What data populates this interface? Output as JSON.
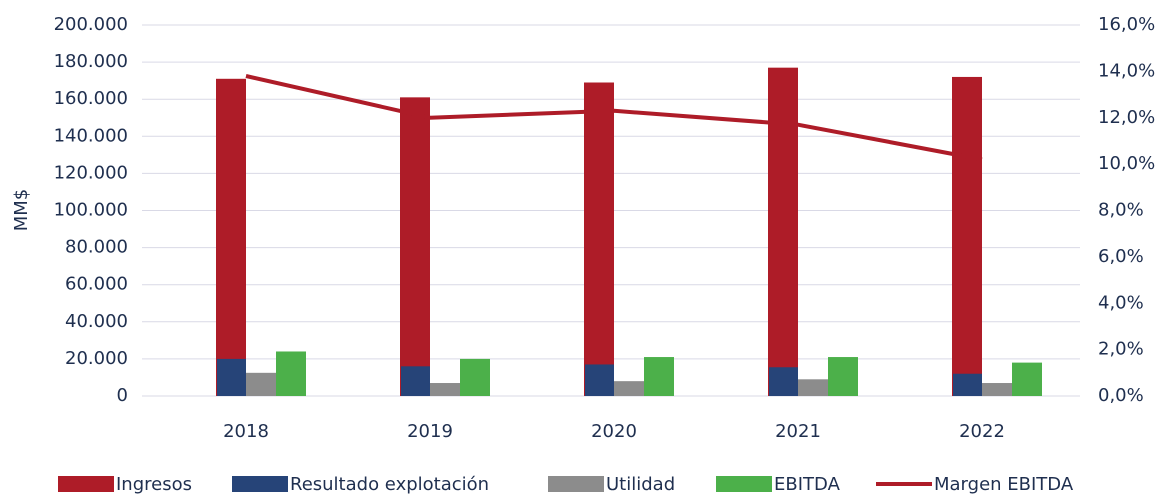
{
  "chart_data": {
    "type": "bar",
    "y_label": "MM$",
    "categories": [
      "2018",
      "2019",
      "2020",
      "2021",
      "2022"
    ],
    "series": [
      {
        "name": "Ingresos",
        "color": "#ae1c28",
        "values": [
          171000,
          161000,
          169000,
          177000,
          172000
        ]
      },
      {
        "name": "Resultado explotación",
        "color": "#264478",
        "values": [
          20000,
          16000,
          17000,
          15500,
          12000
        ]
      },
      {
        "name": "Utilidad",
        "color": "#8c8c8c",
        "values": [
          12500,
          7000,
          8000,
          9000,
          7000
        ]
      },
      {
        "name": "EBITDA",
        "color": "#4cb04a",
        "values": [
          24000,
          20000,
          21000,
          21000,
          18000
        ]
      },
      {
        "name": "Margen EBITDA",
        "color": "#ae1c28",
        "type": "line",
        "axis": "y2",
        "values": [
          13.8,
          12.0,
          12.3,
          11.7,
          10.2
        ]
      }
    ],
    "ylim": [
      0,
      200000
    ],
    "yticks": [
      {
        "value": 0,
        "label": "0"
      },
      {
        "value": 20000,
        "label": "20.000"
      },
      {
        "value": 40000,
        "label": "40.000"
      },
      {
        "value": 60000,
        "label": "60.000"
      },
      {
        "value": 80000,
        "label": "80.000"
      },
      {
        "value": 100000,
        "label": "100.000"
      },
      {
        "value": 120000,
        "label": "120.000"
      },
      {
        "value": 140000,
        "label": "140.000"
      },
      {
        "value": 160000,
        "label": "160.000"
      },
      {
        "value": 180000,
        "label": "180.000"
      },
      {
        "value": 200000,
        "label": "200.000"
      }
    ],
    "y2lim": [
      0,
      16
    ],
    "y2ticks": [
      {
        "value": 0,
        "label": "0,0%"
      },
      {
        "value": 2,
        "label": "2,0%"
      },
      {
        "value": 4,
        "label": "4,0%"
      },
      {
        "value": 6,
        "label": "6,0%"
      },
      {
        "value": 8,
        "label": "8,0%"
      },
      {
        "value": 10,
        "label": "10,0%"
      },
      {
        "value": 12,
        "label": "12,0%"
      },
      {
        "value": 14,
        "label": "14,0%"
      },
      {
        "value": 16,
        "label": "16,0%"
      }
    ],
    "grid": true,
    "legend": "bottom"
  }
}
